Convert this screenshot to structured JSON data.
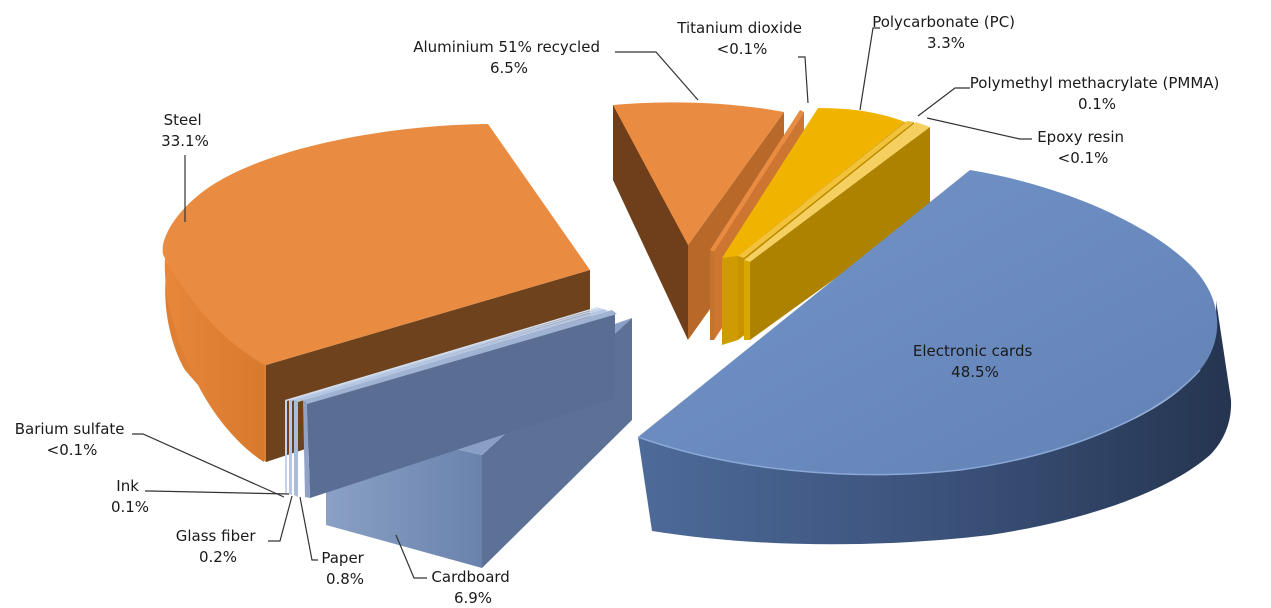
{
  "chart_data": {
    "type": "pie",
    "style": "3d-exploded",
    "title": "",
    "legend": "none",
    "slices": [
      {
        "label": "Electronic cards",
        "value": 48.5,
        "value_label": "48.5%",
        "color": "#6b8cc0"
      },
      {
        "label": "Steel",
        "value": 33.1,
        "value_label": "33.1%",
        "color": "#e98c41"
      },
      {
        "label": "Cardboard",
        "value": 6.9,
        "value_label": "6.9%",
        "color": "#8097bd"
      },
      {
        "label": "Aluminium 51% recycled",
        "value": 6.5,
        "value_label": "6.5%",
        "color": "#e98c41"
      },
      {
        "label": "Polycarbonate (PC)",
        "value": 3.3,
        "value_label": "3.3%",
        "color": "#f0b400"
      },
      {
        "label": "Paper",
        "value": 0.8,
        "value_label": "0.8%",
        "color": "#7d93b8"
      },
      {
        "label": "Glass fiber",
        "value": 0.2,
        "value_label": "0.2%",
        "color": "#a9bddb"
      },
      {
        "label": "Ink",
        "value": 0.1,
        "value_label": "0.1%",
        "color": "#a9bddb"
      },
      {
        "label": "Polymethyl methacrylate (PMMA)",
        "value": 0.1,
        "value_label": "0.1%",
        "color": "#f0c040"
      },
      {
        "label": "Barium sulfate",
        "value": 0.05,
        "value_label": "<0.1%",
        "color": "#b8c8e0"
      },
      {
        "label": "Titanium dioxide",
        "value": 0.05,
        "value_label": "<0.1%",
        "color": "#e98c41"
      },
      {
        "label": "Epoxy resin",
        "value": 0.05,
        "value_label": "<0.1%",
        "color": "#f5d060"
      }
    ]
  }
}
